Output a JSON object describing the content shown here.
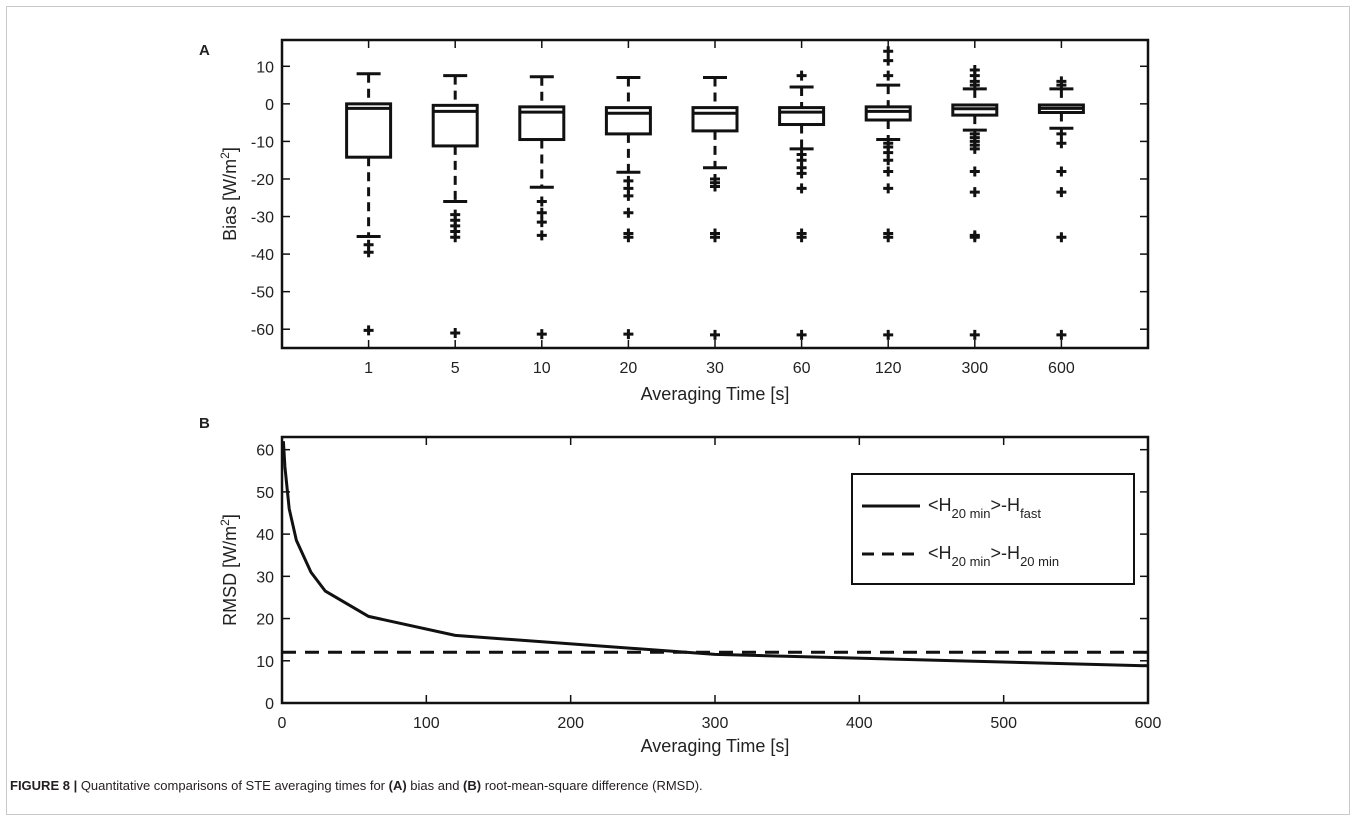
{
  "chart_data": [
    {
      "panel_label": "A",
      "type": "box",
      "xlabel": "Averaging Time [s]",
      "ylabel_main": "Bias [W/m",
      "ylabel_sup": "2",
      "ylabel_tail": "]",
      "ylim": [
        -65,
        17
      ],
      "yticks": [
        10,
        0,
        -10,
        -20,
        -30,
        -40,
        -50,
        -60
      ],
      "categories": [
        "1",
        "5",
        "10",
        "20",
        "30",
        "60",
        "120",
        "300",
        "600"
      ],
      "boxes": [
        {
          "q1": -14.2,
          "median": -1.2,
          "q3": 0.0,
          "whisker_low": -35.3,
          "whisker_high": 8.0,
          "outliers": [
            -37.5,
            -39.5,
            -60.3
          ]
        },
        {
          "q1": -11.2,
          "median": -2.0,
          "q3": -0.4,
          "whisker_low": -26.0,
          "whisker_high": 7.5,
          "outliers": [
            -29.5,
            -31.0,
            -32.5,
            -34.0,
            -35.5,
            -61.0
          ]
        },
        {
          "q1": -9.5,
          "median": -2.2,
          "q3": -0.8,
          "whisker_low": -22.2,
          "whisker_high": 7.2,
          "outliers": [
            -26.0,
            -29.0,
            -31.5,
            -35.0,
            -61.3
          ]
        },
        {
          "q1": -8.0,
          "median": -2.5,
          "q3": -1.0,
          "whisker_low": -18.2,
          "whisker_high": 7.0,
          "outliers": [
            -20.5,
            -22.5,
            -24.5,
            -29.0,
            -34.5,
            -35.5,
            -61.3
          ]
        },
        {
          "q1": -7.2,
          "median": -2.5,
          "q3": -1.0,
          "whisker_low": -17.0,
          "whisker_high": 7.0,
          "outliers": [
            -20.0,
            -21.0,
            -22.0,
            -34.5,
            -35.5,
            -61.5
          ]
        },
        {
          "q1": -5.5,
          "median": -2.2,
          "q3": -1.0,
          "whisker_low": -12.0,
          "whisker_high": 4.5,
          "outliers": [
            7.5,
            -13.5,
            -15.0,
            -17.0,
            -18.5,
            -22.5,
            -34.5,
            -35.5,
            -61.5
          ]
        },
        {
          "q1": -4.3,
          "median": -2.0,
          "q3": -0.8,
          "whisker_low": -9.5,
          "whisker_high": 5.0,
          "outliers": [
            7.5,
            11.5,
            14.0,
            -10.5,
            -11.5,
            -13.0,
            -15.0,
            -18.0,
            -22.5,
            -34.5,
            -35.5,
            -61.5
          ]
        },
        {
          "q1": -3.0,
          "median": -1.3,
          "q3": -0.3,
          "whisker_low": -7.0,
          "whisker_high": 4.0,
          "outliers": [
            5.0,
            6.0,
            7.5,
            9.0,
            -8.0,
            -9.0,
            -10.0,
            -11.0,
            -12.0,
            -18.0,
            -23.5,
            -35.0,
            -35.5,
            -61.5
          ]
        },
        {
          "q1": -2.3,
          "median": -1.2,
          "q3": -0.3,
          "whisker_low": -6.5,
          "whisker_high": 4.0,
          "outliers": [
            5.0,
            6.0,
            -8.0,
            -10.5,
            -18.0,
            -23.5,
            -35.5,
            -61.5
          ]
        }
      ]
    },
    {
      "panel_label": "B",
      "type": "line",
      "xlabel": "Averaging Time [s]",
      "ylabel_main": "RMSD [W/m",
      "ylabel_sup": "2",
      "ylabel_tail": "]",
      "xlim": [
        0,
        600
      ],
      "ylim": [
        0,
        63
      ],
      "xticks": [
        0,
        100,
        200,
        300,
        400,
        500,
        600
      ],
      "yticks": [
        0,
        10,
        20,
        30,
        40,
        50,
        60
      ],
      "legend_position": "top-right",
      "series": [
        {
          "style": "solid",
          "legend_parts": [
            "<H",
            "20 min",
            ">-H",
            "fast"
          ],
          "x": [
            1,
            2,
            5,
            10,
            20,
            30,
            60,
            120,
            300,
            600
          ],
          "y": [
            62,
            56,
            46,
            38.5,
            31,
            26.5,
            20.5,
            16,
            11.5,
            8.8
          ]
        },
        {
          "style": "dashed",
          "legend_parts": [
            "<H",
            "20 min",
            ">-H",
            "20 min"
          ],
          "x": [
            0,
            600
          ],
          "y": [
            12,
            12
          ]
        }
      ]
    }
  ],
  "caption": {
    "label": "FIGURE 8 |",
    "text1": " Quantitative comparisons of STE averaging times for ",
    "bold_a": "(A)",
    "text2": " bias and ",
    "bold_b": "(B)",
    "text3": " root-mean-square difference (RMSD)."
  }
}
